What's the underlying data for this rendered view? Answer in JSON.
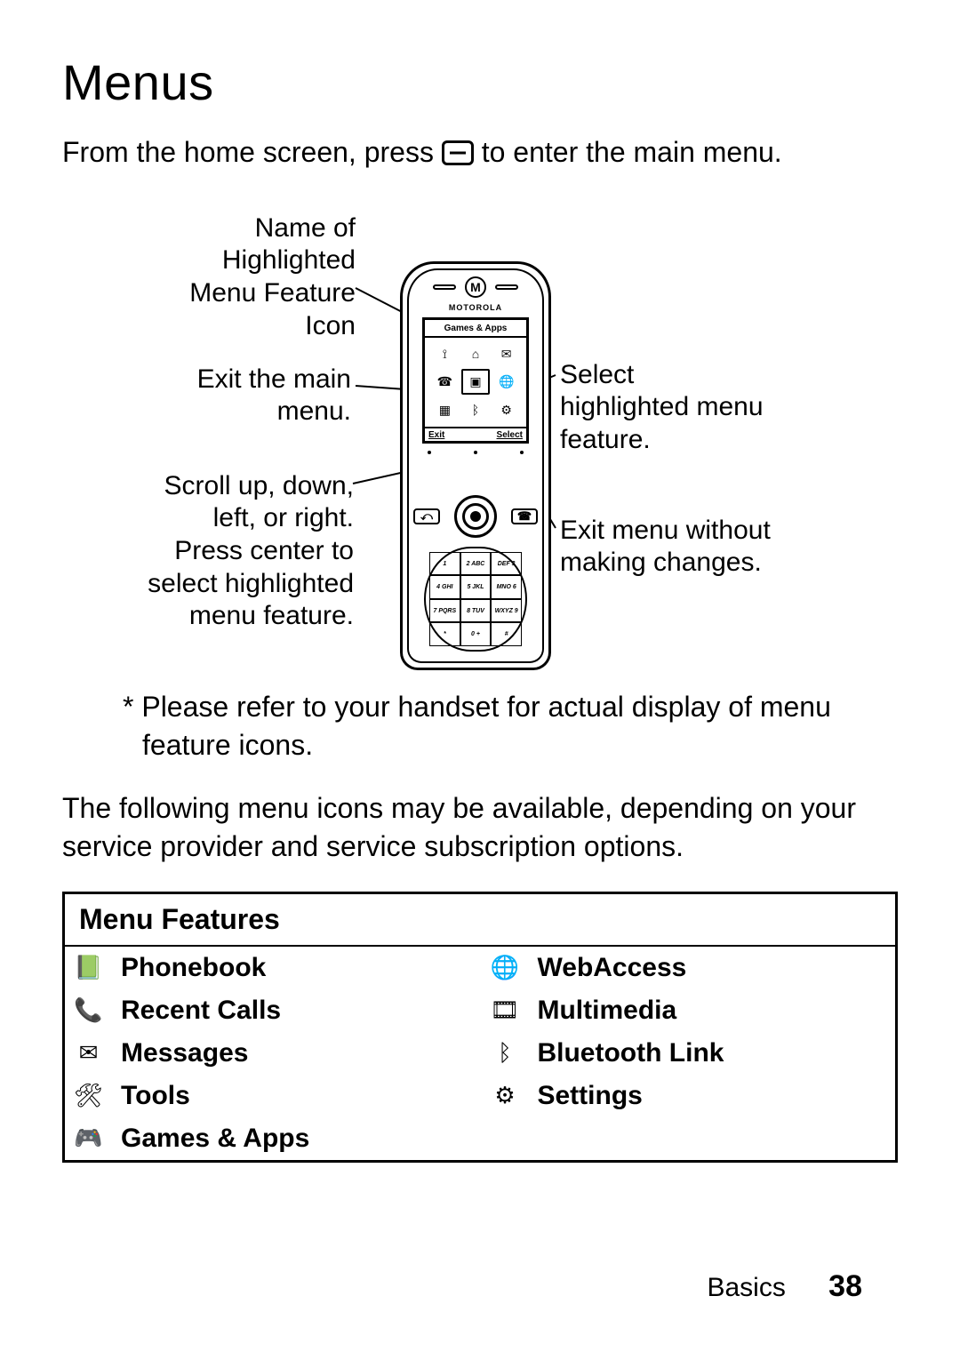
{
  "title": "Menus",
  "intro_before": "From the home screen, press ",
  "intro_after": " to enter the main menu.",
  "labels": {
    "name_icon": "Name of\nHighlighted\nMenu Feature\nIcon",
    "exit_main": "Exit the main\nmenu.",
    "scroll": "Scroll up, down,\nleft, or right.\nPress center to\nselect highlighted\nmenu feature.",
    "select": "Select\nhighlighted menu\nfeature.",
    "exit_without": "Exit menu without\nmaking changes."
  },
  "phone": {
    "brand": "MOTOROLA",
    "screen_title": "Games & Apps",
    "soft_left": "Exit",
    "soft_right": "Select"
  },
  "footnote": "* Please refer to your handset for actual display of menu feature icons.",
  "para": "The following menu icons may be available, depending on your service provider and service subscription options.",
  "table_header": "Menu Features",
  "features_left": [
    {
      "icon": "📗",
      "label": "Phonebook"
    },
    {
      "icon": "📞",
      "label": "Recent Calls"
    },
    {
      "icon": "✉",
      "label": "Messages"
    },
    {
      "icon": "🛠",
      "label": "Tools"
    },
    {
      "icon": "🎮",
      "label": "Games & Apps"
    }
  ],
  "features_right": [
    {
      "icon": "🌐",
      "label": "WebAccess"
    },
    {
      "icon": "🎞",
      "label": "Multimedia"
    },
    {
      "icon": "ᛒ",
      "label": "Bluetooth Link"
    },
    {
      "icon": "⚙",
      "label": "Settings"
    },
    {
      "icon": "",
      "label": ""
    }
  ],
  "footer_section": "Basics",
  "footer_page": "38"
}
